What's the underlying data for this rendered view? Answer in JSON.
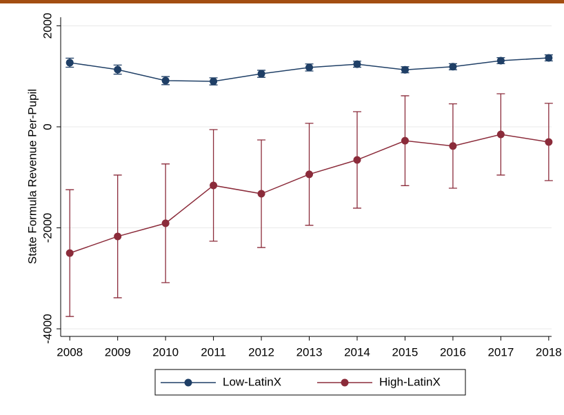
{
  "chart_data": {
    "type": "line",
    "ylabel": "State Formula Revenue Per-Pupil",
    "x": [
      2008,
      2009,
      2010,
      2011,
      2012,
      2013,
      2014,
      2015,
      2016,
      2017,
      2018
    ],
    "xlim": [
      2007.81,
      2018.06
    ],
    "xticks": [
      2008,
      2009,
      2010,
      2011,
      2012,
      2013,
      2014,
      2015,
      2016,
      2017,
      2018
    ],
    "ylim": [
      -4150,
      2170
    ],
    "yticks": [
      -4000,
      -2000,
      0,
      2000
    ],
    "grid": true,
    "legend": "bottom",
    "series": [
      {
        "name": "Low-LatinX",
        "color": "#1f3f66",
        "values": [
          1270,
          1133,
          915,
          900,
          1050,
          1175,
          1240,
          1130,
          1190,
          1310,
          1365
        ],
        "errors": [
          90,
          90,
          80,
          70,
          70,
          70,
          60,
          60,
          60,
          60,
          60
        ]
      },
      {
        "name": "High-LatinX",
        "color": "#8b2b3a",
        "values": [
          -2500,
          -2170,
          -1910,
          -1160,
          -1325,
          -940,
          -655,
          -275,
          -380,
          -150,
          -300
        ],
        "errors": [
          1255,
          1215,
          1175,
          1105,
          1065,
          1010,
          955,
          890,
          835,
          805,
          765
        ]
      }
    ]
  }
}
